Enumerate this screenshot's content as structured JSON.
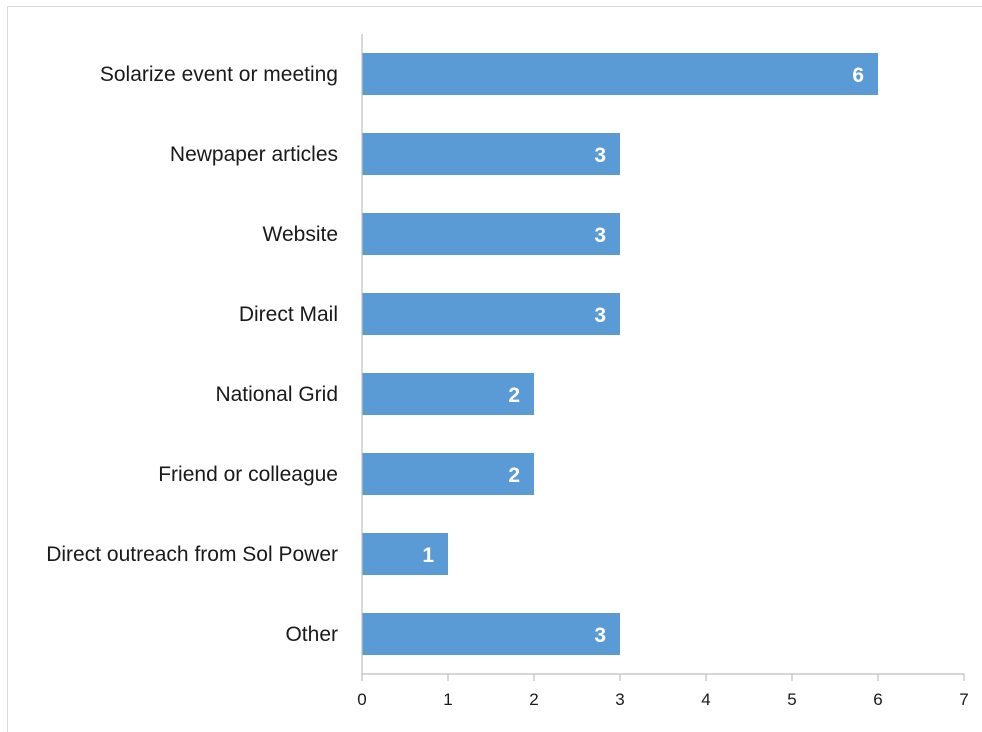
{
  "chart_data": {
    "type": "bar",
    "orientation": "horizontal",
    "categories": [
      "Solarize event or meeting",
      "Newpaper articles",
      "Website",
      "Direct Mail",
      "National Grid",
      "Friend or colleague",
      "Direct outreach from Sol Power",
      "Other"
    ],
    "values": [
      6,
      3,
      3,
      3,
      2,
      2,
      1,
      3
    ],
    "data_labels": [
      "6",
      "3",
      "3",
      "3",
      "2",
      "2",
      "1",
      "3"
    ],
    "xlim": [
      0,
      7
    ],
    "x_ticks": [
      "0",
      "1",
      "2",
      "3",
      "4",
      "5",
      "6",
      "7"
    ],
    "title": "",
    "xlabel": "",
    "ylabel": "",
    "grid": false,
    "legend": "none",
    "colors": {
      "bar": "#5b9bd5",
      "axis": "#bfbfbf",
      "text": "#1a1a1a",
      "data_label": "#ffffff"
    }
  }
}
